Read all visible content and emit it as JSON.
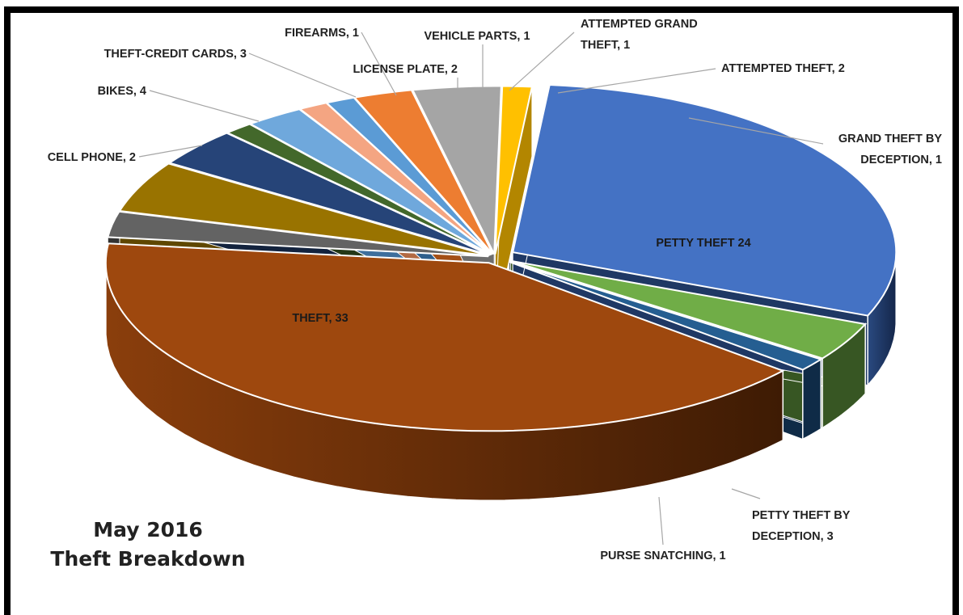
{
  "chart_data": {
    "type": "pie",
    "title_line1": "May 2016",
    "title_line2": "Theft Breakdown",
    "slices": [
      {
        "label": "PETTY THEFT",
        "text": "PETTY THEFT 24",
        "value": 24,
        "color": "#4472C4",
        "side": "#1F3864"
      },
      {
        "label": "PETTY THEFT BY DECEPTION",
        "text_lines": [
          "PETTY THEFT BY",
          "DECEPTION, 3"
        ],
        "value": 3,
        "color": "#70AD47",
        "side": "#375623"
      },
      {
        "label": "PURSE SNATCHING",
        "text": "PURSE SNATCHING, 1",
        "value": 1,
        "color": "#255E91",
        "side": "#0F2B47"
      },
      {
        "label": "THEFT",
        "text": "THEFT, 33",
        "value": 33,
        "color": "#9E480E",
        "side": "#6B2F08"
      },
      {
        "label": "CELL PHONE",
        "text": "CELL PHONE, 2",
        "value": 2,
        "color": "#636363",
        "side": "#333333"
      },
      {
        "label": "BIKES",
        "text": "BIKES, 4",
        "value": 4,
        "color": "#997300",
        "side": "#5F4700"
      },
      {
        "label": "THEFT-CREDIT CARDS",
        "text": "THEFT-CREDIT CARDS, 3",
        "value": 3,
        "color": "#264478",
        "side": "#13233E"
      },
      {
        "label": "FIREARMS",
        "text": "FIREARMS, 1",
        "value": 1,
        "color": "#43682B",
        "side": "#243817"
      },
      {
        "label": "LICENSE PLATE",
        "text": "LICENSE PLATE, 2",
        "value": 2,
        "color": "#6FA8DC",
        "side": "#3D6E9C"
      },
      {
        "label": "VEHICLE PARTS",
        "text": "VEHICLE PARTS, 1",
        "value": 1,
        "color": "#F4A582",
        "side": "#B26A43"
      },
      {
        "label": "ATTEMPTED GRAND THEFT",
        "text_lines": [
          "ATTEMPTED GRAND",
          "THEFT, 1"
        ],
        "value": 1,
        "color": "#5B9BD5",
        "side": "#2E5F8C"
      },
      {
        "label": "ATTEMPTED THEFT",
        "text": "ATTEMPTED THEFT, 2",
        "value": 2,
        "color": "#ED7D31",
        "side": "#A34F16"
      },
      {
        "label": "UNLABELED (GRAY)",
        "value": 3,
        "color": "#A5A5A5",
        "side": "#6E6E6E"
      },
      {
        "label": "GRAND THEFT BY DECEPTION",
        "text_lines": [
          "GRAND THEFT BY",
          "DECEPTION, 1"
        ],
        "value": 1,
        "color": "#FFC000",
        "side": "#B38600"
      }
    ],
    "legend": "none",
    "style": "3d-exploded"
  }
}
